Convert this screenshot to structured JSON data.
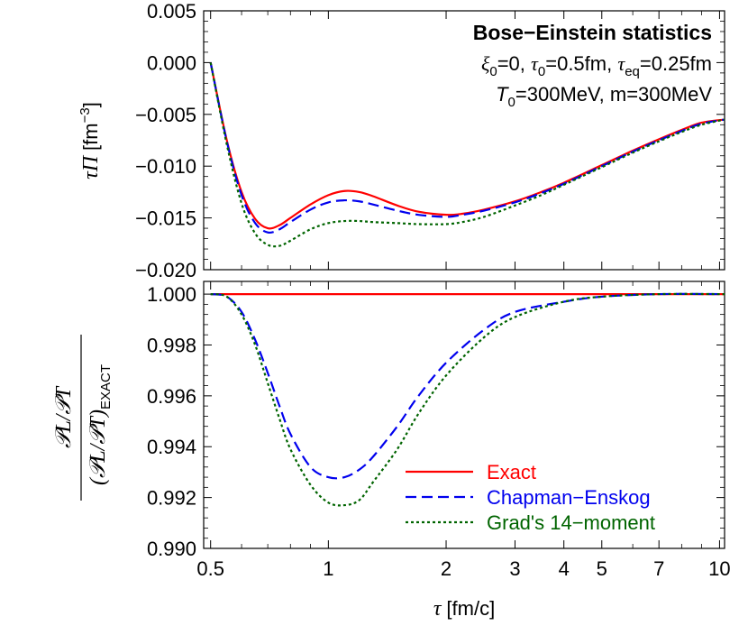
{
  "chart_data": [
    {
      "type": "line",
      "ylabel_symbol": "τΠ",
      "ylabel_unit": "[fm",
      "ylabel_exp": "−3",
      "ylabel_close": "]",
      "ylim": [
        -0.02,
        0.005
      ],
      "yticks": [
        -0.02,
        -0.015,
        -0.01,
        -0.005,
        0.0,
        0.005
      ],
      "ytick_labels": [
        "−0.020",
        "−0.015",
        "−0.010",
        "−0.005",
        "0.000",
        "0.005"
      ],
      "xscale": "log",
      "xlim": [
        0.48,
        10.3
      ],
      "annotations": {
        "line1": "Bose−Einstein statistics",
        "line2": {
          "xi": "ξ",
          "xi_sub": "0",
          "xi_val": "=0, ",
          "tau0": "τ",
          "tau0_sub": "0",
          "tau0_val": "=0.5fm, ",
          "taueq": "τ",
          "taueq_sub": "eq",
          "taueq_val": "=0.25fm"
        },
        "line3": {
          "T": "T",
          "T_sub": "0",
          "T_val": "=300MeV, m=300MeV"
        }
      },
      "series": [
        {
          "name": "Exact",
          "color": "#ff0000",
          "style": "solid",
          "x": [
            0.5,
            0.55,
            0.6,
            0.65,
            0.7,
            0.75,
            0.8,
            0.9,
            1.0,
            1.1,
            1.2,
            1.3,
            1.5,
            1.7,
            2.0,
            2.2,
            2.5,
            3.0,
            3.5,
            4.0,
            5.0,
            6.0,
            7.0,
            8.0,
            9.0,
            10.3
          ],
          "y": [
            0.0,
            -0.0075,
            -0.0125,
            -0.0151,
            -0.016,
            -0.0157,
            -0.015,
            -0.0137,
            -0.0128,
            -0.0124,
            -0.0125,
            -0.0129,
            -0.0138,
            -0.0144,
            -0.0147,
            -0.0146,
            -0.0142,
            -0.0134,
            -0.0125,
            -0.0116,
            -0.0099,
            -0.0085,
            -0.0074,
            -0.0065,
            -0.0058,
            -0.0055
          ]
        },
        {
          "name": "Chapman−Enskog",
          "color": "#0000ee",
          "style": "dashed",
          "x": [
            0.5,
            0.55,
            0.6,
            0.65,
            0.7,
            0.75,
            0.8,
            0.9,
            1.0,
            1.1,
            1.2,
            1.3,
            1.5,
            1.7,
            2.0,
            2.2,
            2.5,
            3.0,
            3.5,
            4.0,
            5.0,
            6.0,
            7.0,
            8.0,
            9.0,
            10.3
          ],
          "y": [
            0.0,
            -0.0076,
            -0.0128,
            -0.0155,
            -0.0164,
            -0.0161,
            -0.0154,
            -0.0142,
            -0.0135,
            -0.0133,
            -0.0134,
            -0.0137,
            -0.0143,
            -0.0147,
            -0.0149,
            -0.0147,
            -0.0143,
            -0.0135,
            -0.0126,
            -0.0117,
            -0.01,
            -0.0086,
            -0.0075,
            -0.0066,
            -0.0059,
            -0.0055
          ]
        },
        {
          "name": "Grad's 14−moment",
          "color": "#006400",
          "style": "dotted",
          "x": [
            0.5,
            0.55,
            0.6,
            0.65,
            0.7,
            0.75,
            0.8,
            0.9,
            1.0,
            1.1,
            1.2,
            1.3,
            1.5,
            1.7,
            2.0,
            2.2,
            2.5,
            3.0,
            3.5,
            4.0,
            5.0,
            6.0,
            7.0,
            8.0,
            9.0,
            10.3
          ],
          "y": [
            0.0,
            -0.0079,
            -0.0136,
            -0.0165,
            -0.0176,
            -0.0177,
            -0.0172,
            -0.0161,
            -0.0155,
            -0.0153,
            -0.0153,
            -0.0154,
            -0.0155,
            -0.0156,
            -0.0156,
            -0.0154,
            -0.0149,
            -0.0138,
            -0.0128,
            -0.0118,
            -0.0101,
            -0.0087,
            -0.0076,
            -0.0067,
            -0.006,
            -0.0055
          ]
        }
      ]
    },
    {
      "type": "line",
      "ylabel_numerator": "𝒫L/𝒫T",
      "ylabel_denominator": "(𝒫L/𝒫T)",
      "ylabel_sub": "EXACT",
      "ylim": [
        0.99,
        1.0005
      ],
      "yticks": [
        0.99,
        0.992,
        0.994,
        0.996,
        0.998,
        1.0
      ],
      "ytick_labels": [
        "0.990",
        "0.992",
        "0.994",
        "0.996",
        "0.998",
        "1.000"
      ],
      "xscale": "log",
      "xlim": [
        0.48,
        10.3
      ],
      "xticks": [
        0.5,
        1,
        2,
        3,
        4,
        5,
        7,
        10
      ],
      "xtick_labels": [
        "0.5",
        "1",
        "2",
        "3",
        "4",
        "5",
        "7",
        "10"
      ],
      "xlabel_symbol": "τ",
      "xlabel_unit": "[fm/c]",
      "series": [
        {
          "name": "Exact",
          "color": "#ff0000",
          "style": "solid",
          "x": [
            0.5,
            10.3
          ],
          "y": [
            1.0,
            1.0
          ]
        },
        {
          "name": "Chapman−Enskog",
          "color": "#0000ee",
          "style": "dashed",
          "x": [
            0.5,
            0.55,
            0.6,
            0.65,
            0.7,
            0.75,
            0.8,
            0.9,
            1.0,
            1.1,
            1.2,
            1.3,
            1.5,
            1.7,
            2.0,
            2.5,
            3.0,
            4.0,
            5.0,
            7.0,
            10.3
          ],
          "y": [
            1.0,
            0.9999,
            0.9993,
            0.9982,
            0.9969,
            0.9956,
            0.9945,
            0.9932,
            0.9928,
            0.9928,
            0.9931,
            0.9936,
            0.9948,
            0.996,
            0.9973,
            0.9986,
            0.9993,
            0.9997,
            0.9999,
            1.0,
            1.0
          ]
        },
        {
          "name": "Grad's 14−moment",
          "color": "#006400",
          "style": "dotted",
          "x": [
            0.5,
            0.55,
            0.6,
            0.65,
            0.7,
            0.75,
            0.8,
            0.9,
            1.0,
            1.1,
            1.2,
            1.3,
            1.5,
            1.7,
            2.0,
            2.5,
            3.0,
            4.0,
            5.0,
            7.0,
            10.3
          ],
          "y": [
            1.0,
            0.9999,
            0.9992,
            0.998,
            0.9965,
            0.9951,
            0.9939,
            0.9925,
            0.9918,
            0.9917,
            0.9919,
            0.9926,
            0.9939,
            0.9953,
            0.9968,
            0.9983,
            0.9991,
            0.9997,
            0.9999,
            1.0,
            1.0
          ]
        }
      ],
      "legend": {
        "placement": "bottom-right",
        "entries": [
          {
            "label": "Exact",
            "color": "#ff0000",
            "style": "solid"
          },
          {
            "label": "Chapman−Enskog",
            "color": "#0000ee",
            "style": "dashed"
          },
          {
            "label": "Grad's 14−moment",
            "color": "#006400",
            "style": "dotted"
          }
        ]
      }
    }
  ]
}
